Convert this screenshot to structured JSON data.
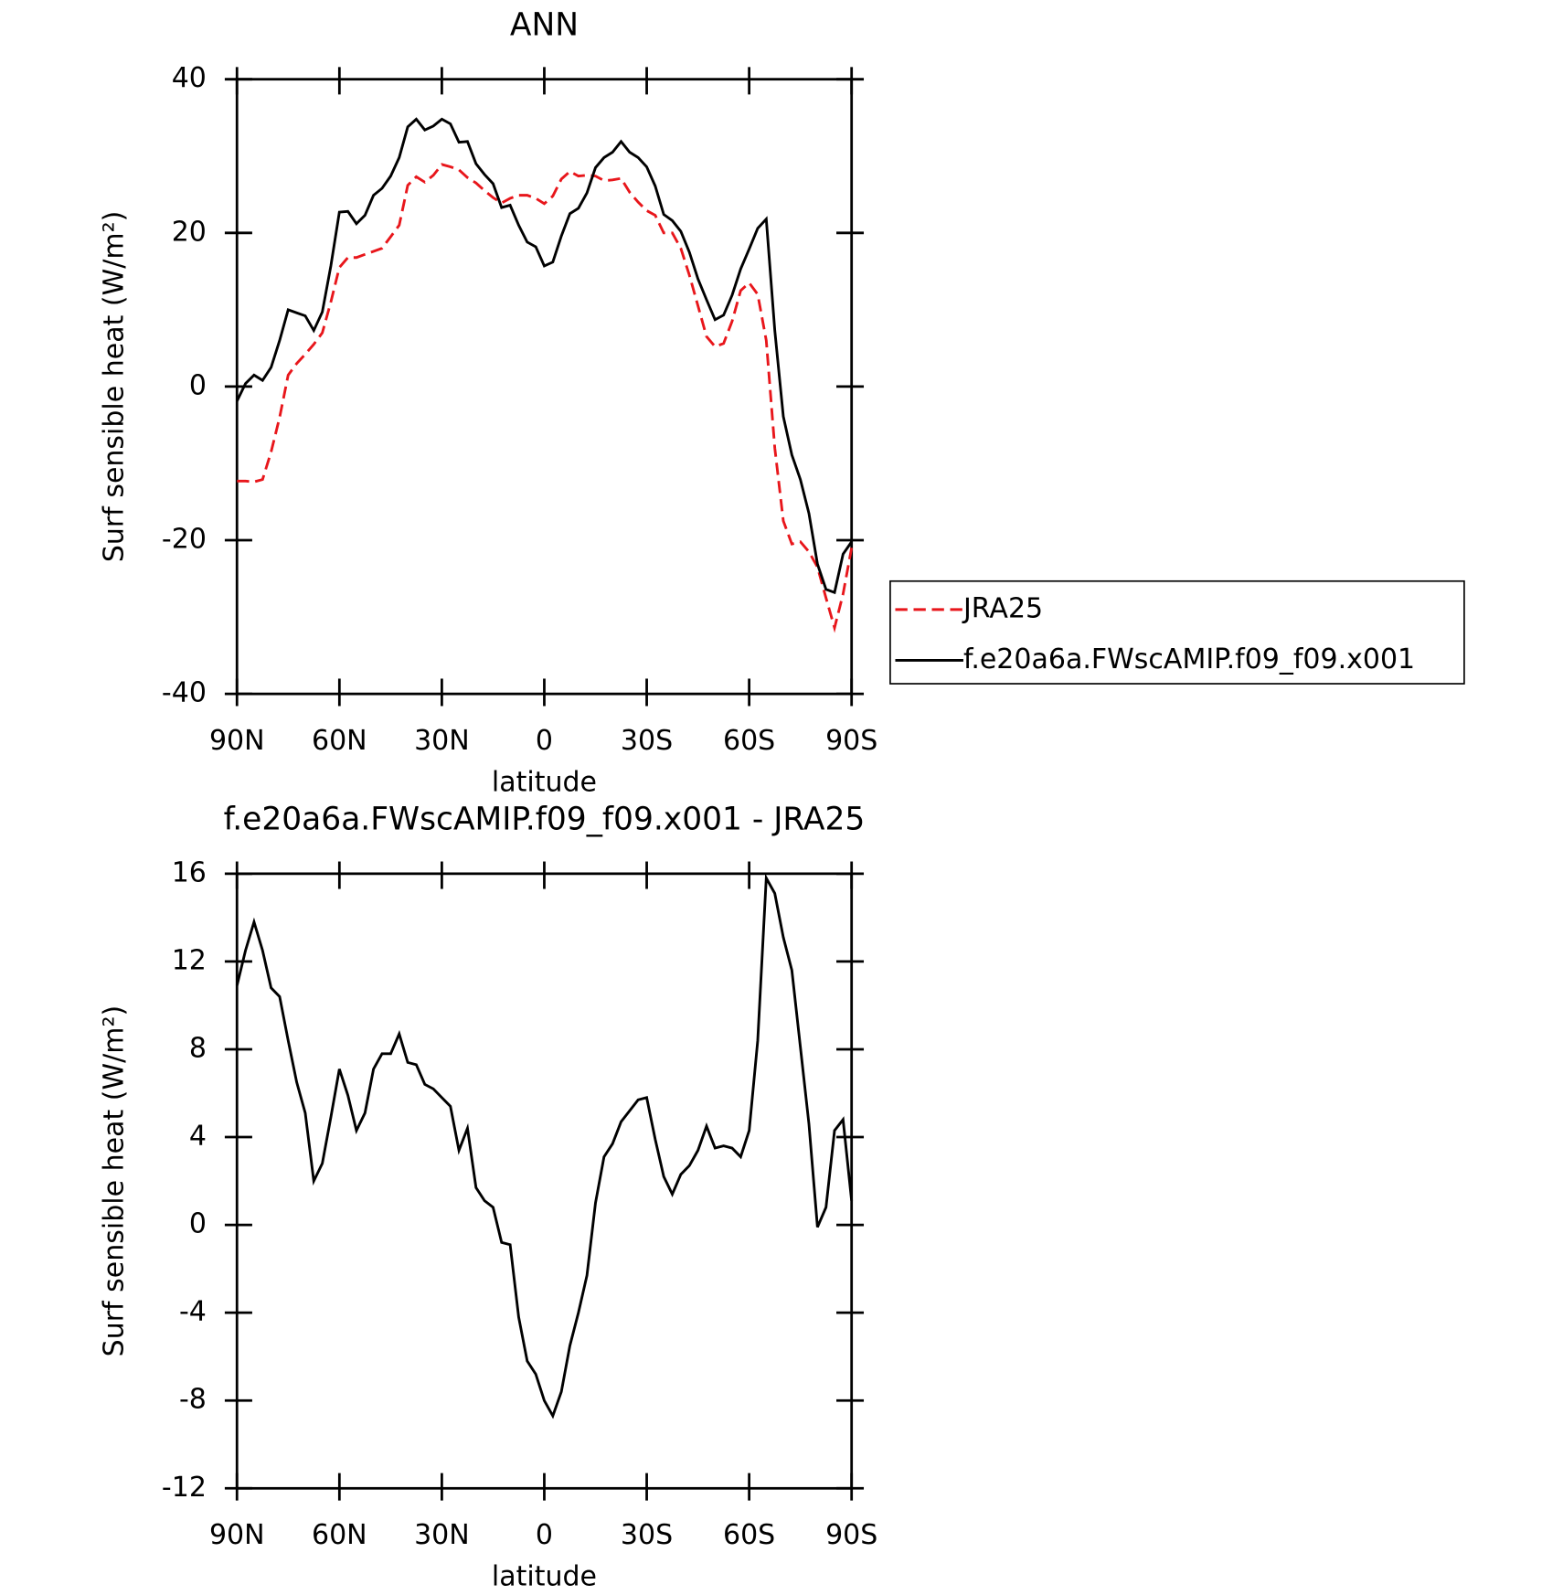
{
  "chart_data": [
    {
      "type": "line",
      "title": "ANN",
      "x_label": "latitude",
      "y_label": "Surf sensible heat (W/m²)",
      "xlim": [
        90,
        -90
      ],
      "xticks": [
        {
          "value": 90,
          "label": "90N"
        },
        {
          "value": 60,
          "label": "60N"
        },
        {
          "value": 30,
          "label": "30N"
        },
        0,
        {
          "value": -30,
          "label": "30S"
        },
        {
          "value": -60,
          "label": "60S"
        },
        {
          "value": -90,
          "label": "90S"
        }
      ],
      "ylim": [
        -40,
        40
      ],
      "yticks": [
        -40,
        -20,
        0,
        20,
        40
      ],
      "legend": "right",
      "x": [
        90,
        87.5,
        85,
        82.5,
        80,
        77.5,
        75,
        72.5,
        70,
        67.5,
        65,
        62.5,
        60,
        57.5,
        55,
        52.5,
        50,
        47.5,
        45,
        42.5,
        40,
        37.5,
        35,
        32.5,
        30,
        27.5,
        25,
        22.5,
        20,
        17.5,
        15,
        12.5,
        10,
        7.5,
        5,
        2.5,
        0,
        -2.5,
        -5,
        -7.5,
        -10,
        -12.5,
        -15,
        -17.5,
        -20,
        -22.5,
        -25,
        -27.5,
        -30,
        -32.5,
        -35,
        -37.5,
        -40,
        -42.5,
        -45,
        -47.5,
        -50,
        -52.5,
        -55,
        -57.5,
        -60,
        -62.5,
        -65,
        -67.5,
        -70,
        -72.5,
        -75,
        -77.5,
        -80,
        -82.5,
        -85,
        -87.5,
        -90
      ],
      "series": [
        {
          "name": "JRA25",
          "color": "#e8161b",
          "dash": true,
          "values": [
            -12.3,
            -12.3,
            -12.4,
            -12.1,
            -8.5,
            -4,
            1.5,
            3,
            4.2,
            5.5,
            7,
            11,
            15.5,
            16.8,
            16.8,
            17.2,
            17.6,
            18,
            19.5,
            21,
            26.2,
            27.3,
            26.6,
            27.5,
            28.9,
            28.6,
            28.2,
            27.2,
            26.5,
            25.5,
            24.6,
            23.9,
            24.5,
            24.9,
            24.9,
            24.5,
            23.8,
            24.8,
            27,
            28,
            27.4,
            27.5,
            27.4,
            26.8,
            26.9,
            27.1,
            25.3,
            24,
            22.9,
            22.3,
            20,
            20,
            18,
            14.5,
            10.5,
            6.5,
            5.2,
            5.6,
            8.5,
            12.5,
            13.5,
            12,
            6,
            -8,
            -17.5,
            -20.5,
            -20.2,
            -21.5,
            -23.5,
            -27.5,
            -31.4,
            -27,
            -21
          ]
        },
        {
          "name": "f.e20a6a.FWscAMIP.f09_f09.x001",
          "color": "#000000",
          "dash": false,
          "values": [
            -1.9,
            0.4,
            1.5,
            0.8,
            2.5,
            6,
            10,
            9.6,
            9.2,
            7.3,
            9.7,
            15.7,
            22.7,
            22.8,
            21.2,
            22.3,
            24.9,
            25.8,
            27.4,
            29.8,
            33.8,
            34.8,
            33.4,
            33.9,
            34.8,
            34.2,
            31.8,
            31.9,
            29,
            27.6,
            26.4,
            23.3,
            23.6,
            21,
            18.8,
            18.2,
            15.7,
            16.2,
            19.6,
            22.5,
            23.2,
            25.2,
            28.5,
            29.8,
            30.5,
            31.9,
            30.5,
            29.8,
            28.6,
            26.1,
            22.4,
            21.6,
            20.2,
            17.5,
            14,
            11.3,
            8.7,
            9.3,
            11.9,
            15.3,
            17.9,
            20.6,
            21.8,
            7.3,
            -3.9,
            -8.9,
            -12.1,
            -16.5,
            -23.1,
            -26.4,
            -26.8,
            -21.8,
            -20.2
          ]
        }
      ]
    },
    {
      "type": "line",
      "title": "f.e20a6a.FWscAMIP.f09_f09.x001 - JRA25",
      "x_label": "latitude",
      "y_label": "Surf sensible heat (W/m²)",
      "xlim": [
        90,
        -90
      ],
      "xticks": [
        {
          "value": 90,
          "label": "90N"
        },
        {
          "value": 60,
          "label": "60N"
        },
        {
          "value": 30,
          "label": "30N"
        },
        0,
        {
          "value": -30,
          "label": "30S"
        },
        {
          "value": -60,
          "label": "60S"
        },
        {
          "value": -90,
          "label": "90S"
        }
      ],
      "ylim": [
        -12,
        16
      ],
      "yticks": [
        -12,
        -8,
        -4,
        0,
        4,
        8,
        12,
        16
      ],
      "x": [
        90,
        87.5,
        85,
        82.5,
        80,
        77.5,
        75,
        72.5,
        70,
        67.5,
        65,
        62.5,
        60,
        57.5,
        55,
        52.5,
        50,
        47.5,
        45,
        42.5,
        40,
        37.5,
        35,
        32.5,
        30,
        27.5,
        25,
        22.5,
        20,
        17.5,
        15,
        12.5,
        10,
        7.5,
        5,
        2.5,
        0,
        -2.5,
        -5,
        -7.5,
        -10,
        -12.5,
        -15,
        -17.5,
        -20,
        -22.5,
        -25,
        -27.5,
        -30,
        -32.5,
        -35,
        -37.5,
        -40,
        -42.5,
        -45,
        -47.5,
        -50,
        -52.5,
        -55,
        -57.5,
        -60,
        -62.5,
        -65,
        -67.5,
        -70,
        -72.5,
        -75,
        -77.5,
        -80,
        -82.5,
        -85,
        -87.5,
        -90
      ],
      "color": "#000000",
      "values": [
        10.9,
        12.5,
        13.8,
        12.5,
        10.8,
        10.4,
        8.4,
        6.5,
        5.1,
        2,
        2.8,
        4.9,
        7.1,
        5.9,
        4.3,
        5.1,
        7.1,
        7.8,
        7.8,
        8.7,
        7.4,
        7.3,
        6.4,
        6.2,
        5.8,
        5.4,
        3.4,
        4.4,
        1.7,
        1.1,
        0.8,
        -0.8,
        -0.9,
        -4.2,
        -6.2,
        -6.8,
        -8,
        -8.7,
        -7.6,
        -5.5,
        -4,
        -2.3,
        1,
        3.1,
        3.7,
        4.7,
        5.2,
        5.7,
        5.8,
        3.9,
        2.2,
        1.4,
        2.3,
        2.7,
        3.4,
        4.5,
        3.5,
        3.6,
        3.5,
        3.1,
        4.3,
        8.4,
        15.8,
        15.1,
        13.1,
        11.6,
        8.1,
        4.6,
        -0.1,
        0.8,
        4.3,
        4.8,
        1.1
      ]
    }
  ]
}
